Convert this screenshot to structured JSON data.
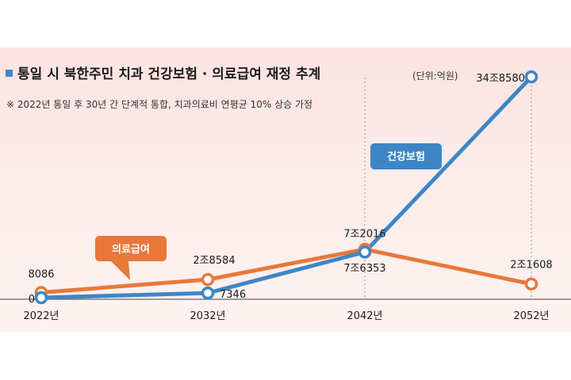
{
  "header": {
    "title": "통일 시 북한주민 치과 건강보험 · 의료급여 재정 추계",
    "unit": "(단위:억원)",
    "footnote": "※ 2022년 통일 후 30년 간 단계적 통합, 치과의료비 연평균 10% 상승 가정"
  },
  "colors": {
    "health": "#3d86c6",
    "medical": "#e8783a",
    "axis": "#666666"
  },
  "chart_data": {
    "type": "line",
    "title": "통일 시 북한주민 치과 건강보험 · 의료급여 재정 추계",
    "unit": "(단위:억원)",
    "categories": [
      "2022년",
      "2032년",
      "2042년",
      "2052년"
    ],
    "series": [
      {
        "name": "건강보험",
        "values": [
          0,
          7346,
          72016,
          348580
        ],
        "labels": [
          "0",
          "7346",
          "7조2016",
          "34조8580"
        ]
      },
      {
        "name": "의료급여",
        "values": [
          8086,
          28584,
          76353,
          21608
        ],
        "labels": [
          "8086",
          "2조8584",
          "7조6353",
          "2조1608"
        ]
      }
    ],
    "ylim": [
      0,
      350000
    ],
    "grid": false,
    "legend": "callouts"
  }
}
